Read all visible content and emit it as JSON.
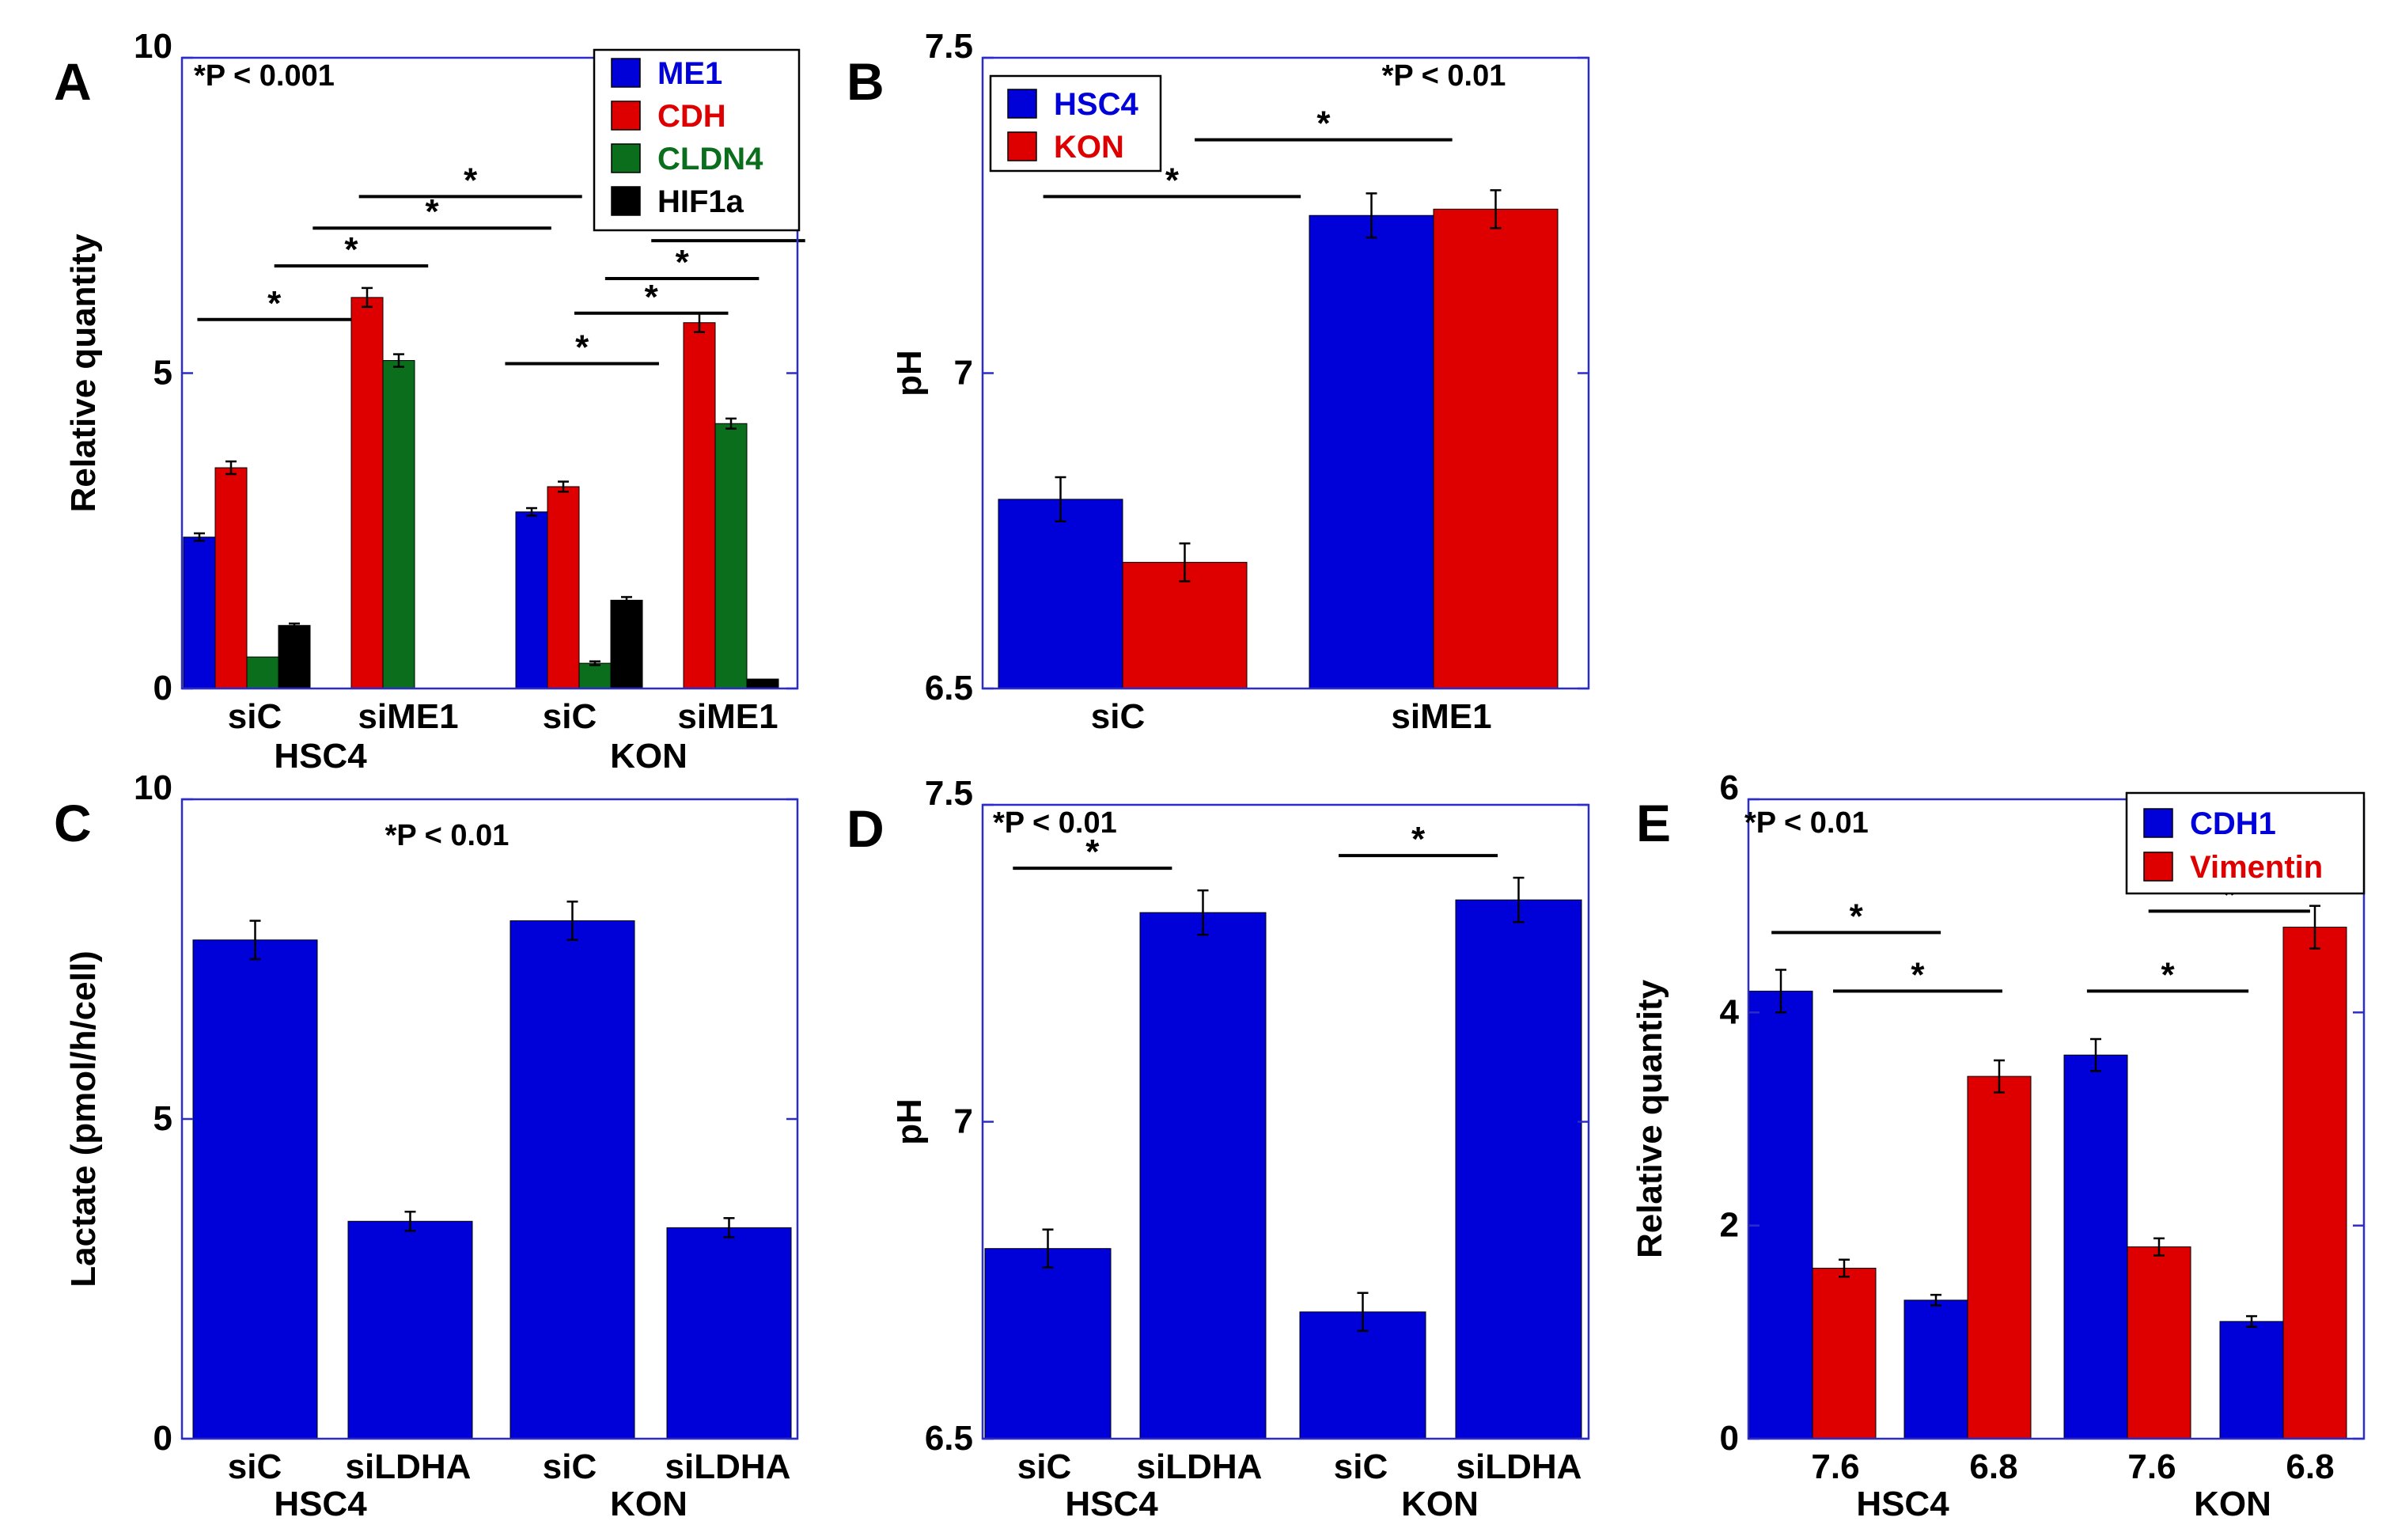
{
  "colors": {
    "blue": "#0000d8",
    "red": "#de0000",
    "green": "#0a6e1c",
    "black": "#000000",
    "axis": "#2c2cc8"
  },
  "chart_data": [
    {
      "panel": "A",
      "type": "bar",
      "ylabel": "Relative quantity",
      "ylim": [
        0,
        10
      ],
      "yticks": [
        "0",
        "5",
        "10"
      ],
      "note": "*P < 0.001",
      "legend_position": "top-right",
      "categories": [
        "siC",
        "siME1",
        "siC",
        "siME1"
      ],
      "groups": [
        {
          "label": "HSC4",
          "span": [
            0,
            1
          ]
        },
        {
          "label": "KON",
          "span": [
            2,
            3
          ]
        }
      ],
      "series": [
        {
          "name": "ME1",
          "color": "#0000d8",
          "values": [
            2.4,
            0,
            2.8,
            0
          ],
          "errors": [
            0.06,
            0,
            0.06,
            0
          ]
        },
        {
          "name": "CDH",
          "color": "#de0000",
          "values": [
            3.5,
            6.2,
            3.2,
            5.8
          ],
          "errors": [
            0.1,
            0.15,
            0.08,
            0.15
          ]
        },
        {
          "name": "CLDN4",
          "color": "#0a6e1c",
          "values": [
            0.5,
            5.2,
            0.4,
            4.2
          ],
          "errors": [
            0,
            0.1,
            0.03,
            0.08
          ]
        },
        {
          "name": "HIF1a",
          "color": "#000000",
          "values": [
            1.0,
            0,
            1.4,
            0.15
          ],
          "errors": [
            0.03,
            0,
            0.05,
            0
          ]
        }
      ],
      "significance": [
        {
          "x1": 0.1,
          "x2": 1.1,
          "y": 5.85,
          "label": "*"
        },
        {
          "x1": 0.6,
          "x2": 1.6,
          "y": 6.7,
          "label": "*"
        },
        {
          "x1": 0.85,
          "x2": 2.4,
          "y": 7.3,
          "label": "*"
        },
        {
          "x1": 1.15,
          "x2": 2.6,
          "y": 7.8,
          "label": "*"
        },
        {
          "x1": 2.1,
          "x2": 3.1,
          "y": 5.15,
          "label": "*"
        },
        {
          "x1": 2.55,
          "x2": 3.55,
          "y": 5.95,
          "label": "*"
        },
        {
          "x1": 2.75,
          "x2": 3.75,
          "y": 6.5,
          "label": "*"
        },
        {
          "x1": 3.05,
          "x2": 4.05,
          "y": 7.1,
          "label": "*"
        }
      ]
    },
    {
      "panel": "B",
      "type": "bar",
      "ylabel": "pH",
      "ylim": [
        6.5,
        7.5
      ],
      "yticks": [
        "6.5",
        "7",
        "7.5"
      ],
      "note": "*P < 0.01",
      "legend_position": "top-left",
      "categories": [
        "siC",
        "siME1"
      ],
      "groups": [],
      "series": [
        {
          "name": "HSC4",
          "color": "#0000d8",
          "values": [
            6.8,
            7.25
          ],
          "errors": [
            0.035,
            0.035
          ]
        },
        {
          "name": "KON",
          "color": "#de0000",
          "values": [
            6.7,
            7.26
          ],
          "errors": [
            0.03,
            0.03
          ]
        }
      ],
      "significance": [
        {
          "x1": 0.2,
          "x2": 1.05,
          "y": 7.28,
          "label": "*"
        },
        {
          "x1": 0.7,
          "x2": 1.55,
          "y": 7.37,
          "label": "*"
        }
      ]
    },
    {
      "panel": "C",
      "type": "bar",
      "ylabel": "Lactate (pmol/h/cell)",
      "ylim": [
        0,
        10
      ],
      "yticks": [
        "0",
        "5",
        "10"
      ],
      "note": "*P < 0.01",
      "legend_position": "none",
      "categories": [
        "siC",
        "siLDHA",
        "siC",
        "siLDHA"
      ],
      "groups": [
        {
          "label": "HSC4",
          "span": [
            0,
            1
          ]
        },
        {
          "label": "KON",
          "span": [
            2,
            3
          ]
        }
      ],
      "series": [
        {
          "name": "",
          "color": "#0000d8",
          "values": [
            7.8,
            3.4,
            8.1,
            3.3
          ],
          "errors": [
            0.3,
            0.15,
            0.3,
            0.15
          ]
        }
      ],
      "significance": []
    },
    {
      "panel": "D",
      "type": "bar",
      "ylabel": "pH",
      "ylim": [
        6.5,
        7.5
      ],
      "yticks": [
        "6.5",
        "7",
        "7.5"
      ],
      "note": "*P < 0.01",
      "legend_position": "none",
      "categories": [
        "siC",
        "siLDHA",
        "siC",
        "siLDHA"
      ],
      "groups": [
        {
          "label": "HSC4",
          "span": [
            0,
            1
          ]
        },
        {
          "label": "KON",
          "span": [
            2,
            3
          ]
        }
      ],
      "series": [
        {
          "name": "",
          "color": "#0000d8",
          "values": [
            6.8,
            7.33,
            6.7,
            7.35
          ],
          "errors": [
            0.03,
            0.035,
            0.03,
            0.035
          ]
        }
      ],
      "significance": [
        {
          "x1": 0.2,
          "x2": 1.25,
          "y": 7.4,
          "label": "*"
        },
        {
          "x1": 2.35,
          "x2": 3.4,
          "y": 7.42,
          "label": "*"
        }
      ]
    },
    {
      "panel": "E",
      "type": "bar",
      "ylabel": "Relative quantity",
      "ylim": [
        0,
        6
      ],
      "yticks": [
        "0",
        "2",
        "4",
        "6"
      ],
      "note": "*P < 0.01",
      "legend_position": "top-right",
      "categories": [
        "7.6",
        "6.8",
        "7.6",
        "6.8"
      ],
      "groups": [
        {
          "label": "HSC4",
          "span": [
            0,
            1
          ]
        },
        {
          "label": "KON",
          "span": [
            2,
            3
          ]
        }
      ],
      "series": [
        {
          "name": "CDH1",
          "color": "#0000d8",
          "values": [
            4.2,
            1.3,
            3.6,
            1.1
          ],
          "errors": [
            0.2,
            0.05,
            0.15,
            0.05
          ]
        },
        {
          "name": "Vimentin",
          "color": "#de0000",
          "values": [
            1.6,
            3.4,
            1.8,
            4.8
          ],
          "errors": [
            0.08,
            0.15,
            0.08,
            0.2
          ]
        }
      ],
      "significance": [
        {
          "x1": 0.15,
          "x2": 1.25,
          "y": 4.75,
          "label": "*"
        },
        {
          "x1": 0.55,
          "x2": 1.65,
          "y": 4.2,
          "label": "*"
        },
        {
          "x1": 2.2,
          "x2": 3.25,
          "y": 4.2,
          "label": "*"
        },
        {
          "x1": 2.6,
          "x2": 3.65,
          "y": 4.95,
          "label": "*"
        }
      ]
    }
  ]
}
